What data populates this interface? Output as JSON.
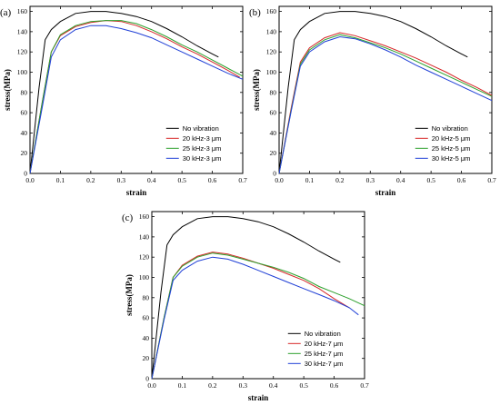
{
  "chart_data": [
    {
      "type": "line",
      "panel_label": "(a)",
      "xlabel": "strain",
      "ylabel": "stress(MPa)",
      "xlim": [
        0.0,
        0.7
      ],
      "ylim": [
        0,
        165
      ],
      "xticks": [
        "0.0",
        "0.1",
        "0.2",
        "0.3",
        "0.4",
        "0.5",
        "0.6",
        "0.7"
      ],
      "yticks": [
        "0",
        "20",
        "40",
        "60",
        "80",
        "100",
        "120",
        "140",
        "160"
      ],
      "legend_position": "bottom-right",
      "series": [
        {
          "name": "No vibration",
          "color": "#000000",
          "points": [
            [
              0,
              0
            ],
            [
              0.03,
              85
            ],
            [
              0.05,
              132
            ],
            [
              0.07,
              142
            ],
            [
              0.1,
              150
            ],
            [
              0.15,
              158
            ],
            [
              0.2,
              160
            ],
            [
              0.25,
              160
            ],
            [
              0.3,
              158
            ],
            [
              0.35,
              155
            ],
            [
              0.4,
              150
            ],
            [
              0.45,
              143
            ],
            [
              0.5,
              135
            ],
            [
              0.55,
              126
            ],
            [
              0.6,
              118
            ],
            [
              0.62,
              115
            ]
          ]
        },
        {
          "name": "20 kHz-3 μm",
          "color": "#d62728",
          "points": [
            [
              0,
              0
            ],
            [
              0.04,
              70
            ],
            [
              0.07,
              120
            ],
            [
              0.1,
              136
            ],
            [
              0.15,
              145
            ],
            [
              0.2,
              149
            ],
            [
              0.25,
              151
            ],
            [
              0.3,
              150
            ],
            [
              0.35,
              146
            ],
            [
              0.4,
              140
            ],
            [
              0.45,
              133
            ],
            [
              0.5,
              125
            ],
            [
              0.55,
              118
            ],
            [
              0.6,
              110
            ],
            [
              0.65,
              102
            ],
            [
              0.69,
              95
            ]
          ]
        },
        {
          "name": "25 kHz-3 μm",
          "color": "#2ca02c",
          "points": [
            [
              0,
              0
            ],
            [
              0.04,
              70
            ],
            [
              0.07,
              120
            ],
            [
              0.1,
              137
            ],
            [
              0.15,
              146
            ],
            [
              0.2,
              150
            ],
            [
              0.25,
              151
            ],
            [
              0.3,
              151
            ],
            [
              0.35,
              148
            ],
            [
              0.4,
              142
            ],
            [
              0.45,
              135
            ],
            [
              0.5,
              127
            ],
            [
              0.55,
              120
            ],
            [
              0.6,
              112
            ],
            [
              0.65,
              104
            ],
            [
              0.7,
              96
            ]
          ]
        },
        {
          "name": "30 kHz-3 μm",
          "color": "#1f3fd6",
          "points": [
            [
              0,
              0
            ],
            [
              0.04,
              65
            ],
            [
              0.07,
              115
            ],
            [
              0.1,
              132
            ],
            [
              0.15,
              142
            ],
            [
              0.2,
              146
            ],
            [
              0.25,
              146
            ],
            [
              0.3,
              143
            ],
            [
              0.35,
              139
            ],
            [
              0.4,
              134
            ],
            [
              0.45,
              127
            ],
            [
              0.5,
              120
            ],
            [
              0.55,
              113
            ],
            [
              0.6,
              106
            ],
            [
              0.65,
              99
            ],
            [
              0.7,
              93
            ]
          ]
        }
      ]
    },
    {
      "type": "line",
      "panel_label": "(b)",
      "xlabel": "strain",
      "ylabel": "stress(MPa)",
      "xlim": [
        0.0,
        0.7
      ],
      "ylim": [
        0,
        165
      ],
      "xticks": [
        "0.0",
        "0.1",
        "0.2",
        "0.3",
        "0.4",
        "0.5",
        "0.6",
        "0.7"
      ],
      "yticks": [
        "0",
        "20",
        "40",
        "60",
        "80",
        "100",
        "120",
        "140",
        "160"
      ],
      "legend_position": "bottom-right",
      "series": [
        {
          "name": "No vibration",
          "color": "#000000",
          "points": [
            [
              0,
              0
            ],
            [
              0.03,
              85
            ],
            [
              0.05,
              132
            ],
            [
              0.07,
              142
            ],
            [
              0.1,
              150
            ],
            [
              0.15,
              158
            ],
            [
              0.2,
              160
            ],
            [
              0.25,
              160
            ],
            [
              0.3,
              158
            ],
            [
              0.35,
              155
            ],
            [
              0.4,
              150
            ],
            [
              0.45,
              143
            ],
            [
              0.5,
              135
            ],
            [
              0.55,
              126
            ],
            [
              0.6,
              118
            ],
            [
              0.62,
              115
            ]
          ]
        },
        {
          "name": "20 kHz-5 μm",
          "color": "#d62728",
          "points": [
            [
              0,
              0
            ],
            [
              0.04,
              65
            ],
            [
              0.07,
              110
            ],
            [
              0.1,
              124
            ],
            [
              0.15,
              134
            ],
            [
              0.2,
              139
            ],
            [
              0.25,
              136
            ],
            [
              0.3,
              131
            ],
            [
              0.35,
              126
            ],
            [
              0.4,
              120
            ],
            [
              0.45,
              114
            ],
            [
              0.5,
              107
            ],
            [
              0.55,
              100
            ],
            [
              0.6,
              92
            ],
            [
              0.65,
              85
            ],
            [
              0.7,
              77
            ]
          ]
        },
        {
          "name": "25 kHz-5 μm",
          "color": "#2ca02c",
          "points": [
            [
              0,
              0
            ],
            [
              0.04,
              63
            ],
            [
              0.07,
              108
            ],
            [
              0.1,
              122
            ],
            [
              0.15,
              132
            ],
            [
              0.2,
              137
            ],
            [
              0.25,
              134
            ],
            [
              0.3,
              129
            ],
            [
              0.35,
              124
            ],
            [
              0.4,
              118
            ],
            [
              0.45,
              111
            ],
            [
              0.5,
              104
            ],
            [
              0.55,
              97
            ],
            [
              0.6,
              90
            ],
            [
              0.65,
              83
            ],
            [
              0.7,
              76
            ]
          ]
        },
        {
          "name": "30 kHz-5 μm",
          "color": "#1f3fd6",
          "points": [
            [
              0,
              0
            ],
            [
              0.04,
              62
            ],
            [
              0.07,
              106
            ],
            [
              0.1,
              120
            ],
            [
              0.15,
              130
            ],
            [
              0.2,
              135
            ],
            [
              0.25,
              133
            ],
            [
              0.3,
              128
            ],
            [
              0.35,
              122
            ],
            [
              0.4,
              115
            ],
            [
              0.45,
              107
            ],
            [
              0.5,
              100
            ],
            [
              0.55,
              93
            ],
            [
              0.6,
              86
            ],
            [
              0.65,
              79
            ],
            [
              0.7,
              72
            ]
          ]
        }
      ]
    },
    {
      "type": "line",
      "panel_label": "(c)",
      "xlabel": "strain",
      "ylabel": "stress(MPa)",
      "xlim": [
        0.0,
        0.7
      ],
      "ylim": [
        0,
        165
      ],
      "xticks": [
        "0.0",
        "0.1",
        "0.2",
        "0.3",
        "0.4",
        "0.5",
        "0.6",
        "0.7"
      ],
      "yticks": [
        "0",
        "20",
        "40",
        "60",
        "80",
        "100",
        "120",
        "140",
        "160"
      ],
      "legend_position": "bottom-right",
      "series": [
        {
          "name": "No vibration",
          "color": "#000000",
          "points": [
            [
              0,
              0
            ],
            [
              0.03,
              85
            ],
            [
              0.05,
              132
            ],
            [
              0.07,
              142
            ],
            [
              0.1,
              150
            ],
            [
              0.15,
              158
            ],
            [
              0.2,
              160
            ],
            [
              0.25,
              160
            ],
            [
              0.3,
              158
            ],
            [
              0.35,
              155
            ],
            [
              0.4,
              150
            ],
            [
              0.45,
              143
            ],
            [
              0.5,
              135
            ],
            [
              0.55,
              126
            ],
            [
              0.6,
              118
            ],
            [
              0.62,
              115
            ]
          ]
        },
        {
          "name": "20 kHz-7 μm",
          "color": "#d62728",
          "points": [
            [
              0,
              0
            ],
            [
              0.04,
              60
            ],
            [
              0.07,
              100
            ],
            [
              0.1,
              112
            ],
            [
              0.15,
              121
            ],
            [
              0.2,
              125
            ],
            [
              0.25,
              123
            ],
            [
              0.3,
              119
            ],
            [
              0.35,
              114
            ],
            [
              0.4,
              109
            ],
            [
              0.45,
              103
            ],
            [
              0.5,
              97
            ],
            [
              0.55,
              89
            ],
            [
              0.6,
              79
            ],
            [
              0.65,
              70
            ]
          ]
        },
        {
          "name": "25 kHz-7 μm",
          "color": "#2ca02c",
          "points": [
            [
              0,
              0
            ],
            [
              0.04,
              60
            ],
            [
              0.07,
              100
            ],
            [
              0.1,
              111
            ],
            [
              0.15,
              120
            ],
            [
              0.2,
              124
            ],
            [
              0.25,
              122
            ],
            [
              0.3,
              118
            ],
            [
              0.35,
              114
            ],
            [
              0.4,
              110
            ],
            [
              0.45,
              105
            ],
            [
              0.5,
              99
            ],
            [
              0.55,
              91
            ],
            [
              0.6,
              85
            ],
            [
              0.65,
              79
            ],
            [
              0.7,
              72
            ]
          ]
        },
        {
          "name": "30 kHz-7 μm",
          "color": "#1f3fd6",
          "points": [
            [
              0,
              0
            ],
            [
              0.04,
              58
            ],
            [
              0.07,
              97
            ],
            [
              0.1,
              107
            ],
            [
              0.15,
              116
            ],
            [
              0.2,
              120
            ],
            [
              0.25,
              118
            ],
            [
              0.3,
              113
            ],
            [
              0.35,
              107
            ],
            [
              0.4,
              101
            ],
            [
              0.45,
              95
            ],
            [
              0.5,
              89
            ],
            [
              0.55,
              83
            ],
            [
              0.6,
              77
            ],
            [
              0.65,
              70
            ],
            [
              0.68,
              63
            ]
          ]
        }
      ]
    }
  ]
}
